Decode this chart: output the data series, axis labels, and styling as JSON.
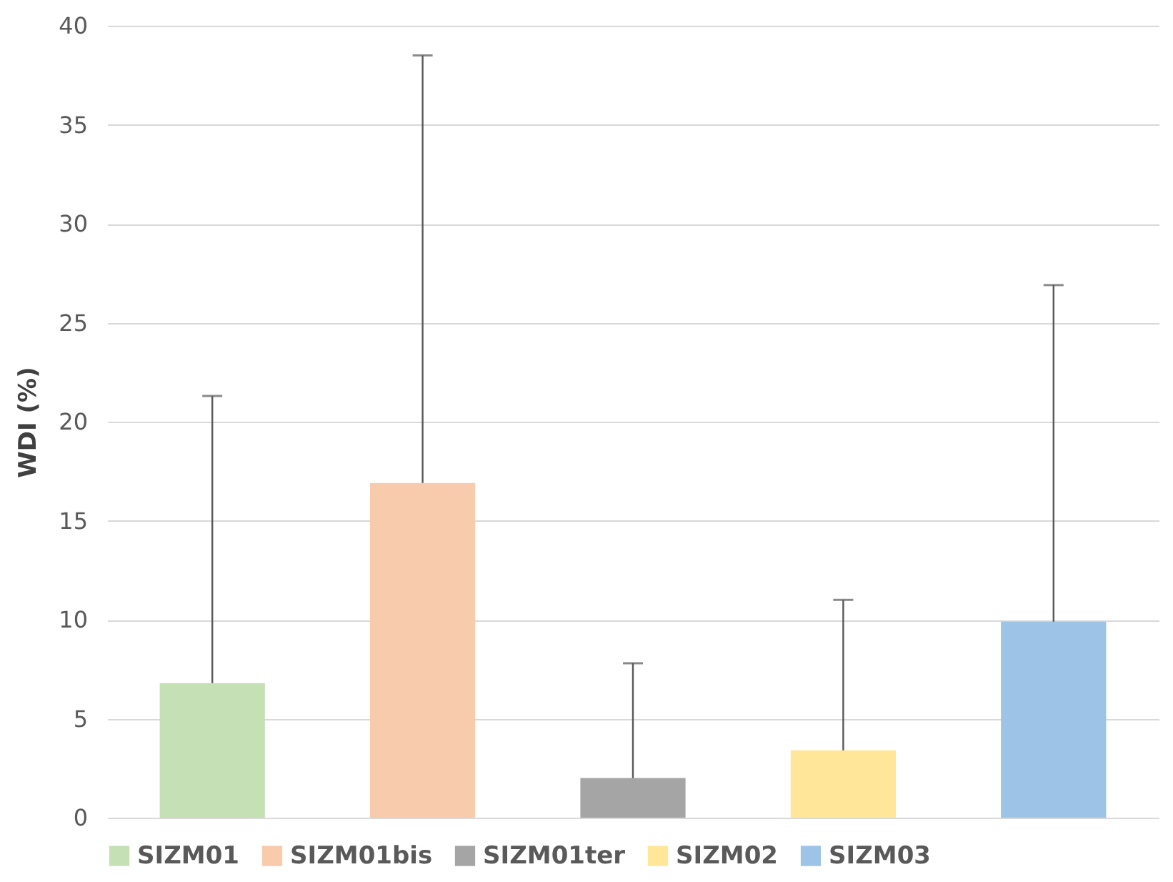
{
  "chart_data": {
    "type": "bar",
    "ylabel": "WDI (%)",
    "categories": [
      null,
      null,
      null,
      null,
      null
    ],
    "series": [
      {
        "name": "SIZM01",
        "color": "#c5e0b4",
        "values": [
          6.8,
          null,
          null,
          null,
          null
        ],
        "errors": [
          [
            6.8,
            21.3
          ],
          null,
          null,
          null,
          null
        ]
      },
      {
        "name": "SIZM01bis",
        "color": "#f8cbad",
        "values": [
          null,
          16.9,
          null,
          null,
          null
        ],
        "errors": [
          null,
          [
            16.9,
            38.5
          ],
          null,
          null,
          null
        ]
      },
      {
        "name": "SIZM01ter",
        "color": "#a5a5a5",
        "values": [
          null,
          null,
          2.0,
          null,
          null
        ],
        "errors": [
          null,
          null,
          [
            2.0,
            7.8
          ],
          null,
          null
        ]
      },
      {
        "name": "SIZM02",
        "color": "#ffe699",
        "values": [
          null,
          null,
          null,
          3.4,
          null
        ],
        "errors": [
          null,
          null,
          null,
          [
            3.4,
            11.0
          ],
          null
        ]
      },
      {
        "name": "SIZM03",
        "color": "#9dc3e6",
        "values": [
          null,
          null,
          null,
          null,
          9.9
        ],
        "errors": [
          null,
          null,
          null,
          null,
          [
            9.9,
            26.9
          ]
        ]
      }
    ],
    "ylim": [
      0,
      40
    ],
    "yticks": [
      0,
      5,
      10,
      15,
      20,
      25,
      30,
      35,
      40
    ],
    "grid": "y",
    "legend": "bottom",
    "tick_labels": "y"
  }
}
